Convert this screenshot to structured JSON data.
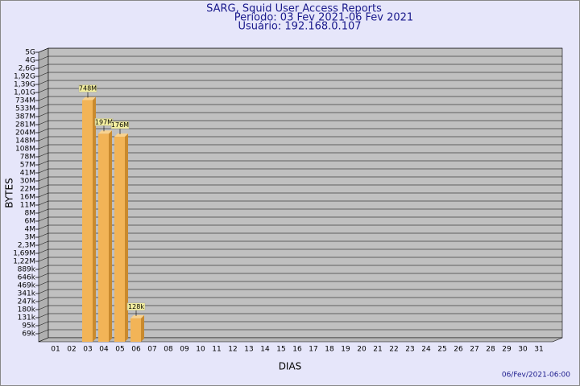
{
  "chart_data": {
    "type": "bar",
    "title": "SARG, Squid User Access Reports",
    "subtitle": "Período: 03 Fev 2021-06 Fev 2021",
    "user": "Usuário: 192.168.0.107",
    "x_label": "DIAS",
    "y_label": "BYTES",
    "footer": "06/Fev/2021-06:00",
    "categories": [
      "01",
      "02",
      "03",
      "04",
      "05",
      "06",
      "07",
      "08",
      "09",
      "10",
      "11",
      "12",
      "13",
      "14",
      "15",
      "16",
      "17",
      "18",
      "19",
      "20",
      "21",
      "22",
      "23",
      "24",
      "25",
      "26",
      "27",
      "28",
      "29",
      "30",
      "31"
    ],
    "values": [
      null,
      null,
      748000000,
      197000000,
      176000000,
      128000,
      null,
      null,
      null,
      null,
      null,
      null,
      null,
      null,
      null,
      null,
      null,
      null,
      null,
      null,
      null,
      null,
      null,
      null,
      null,
      null,
      null,
      null,
      null,
      null,
      null
    ],
    "value_labels": [
      null,
      null,
      "748M",
      "197M",
      "176M",
      "128k",
      null,
      null,
      null,
      null,
      null,
      null,
      null,
      null,
      null,
      null,
      null,
      null,
      null,
      null,
      null,
      null,
      null,
      null,
      null,
      null,
      null,
      null,
      null,
      null,
      null
    ],
    "color": "#f2b457",
    "ylim": [
      0,
      5000000000
    ],
    "yticks": [
      {
        "value": 69000,
        "label": "69k"
      },
      {
        "value": 95000,
        "label": "95k"
      },
      {
        "value": 131000,
        "label": "131k"
      },
      {
        "value": 180000,
        "label": "180k"
      },
      {
        "value": 247000,
        "label": "247k"
      },
      {
        "value": 341000,
        "label": "341k"
      },
      {
        "value": 469000,
        "label": "469k"
      },
      {
        "value": 646000,
        "label": "646k"
      },
      {
        "value": 889000,
        "label": "889k"
      },
      {
        "value": 1220000,
        "label": "1,22M"
      },
      {
        "value": 1690000,
        "label": "1,69M"
      },
      {
        "value": 2300000,
        "label": "2,3M"
      },
      {
        "value": 3000000,
        "label": "3M"
      },
      {
        "value": 4000000,
        "label": "4M"
      },
      {
        "value": 6000000,
        "label": "6M"
      },
      {
        "value": 8000000,
        "label": "8M"
      },
      {
        "value": 11000000,
        "label": "11M"
      },
      {
        "value": 16000000,
        "label": "16M"
      },
      {
        "value": 22000000,
        "label": "22M"
      },
      {
        "value": 30000000,
        "label": "30M"
      },
      {
        "value": 41000000,
        "label": "41M"
      },
      {
        "value": 57000000,
        "label": "57M"
      },
      {
        "value": 78000000,
        "label": "78M"
      },
      {
        "value": 108000000,
        "label": "108M"
      },
      {
        "value": 148000000,
        "label": "148M"
      },
      {
        "value": 204000000,
        "label": "204M"
      },
      {
        "value": 281000000,
        "label": "281M"
      },
      {
        "value": 387000000,
        "label": "387M"
      },
      {
        "value": 533000000,
        "label": "533M"
      },
      {
        "value": 734000000,
        "label": "734M"
      },
      {
        "value": 1010000000,
        "label": "1,01G"
      },
      {
        "value": 1390000000,
        "label": "1,39G"
      },
      {
        "value": 1920000000,
        "label": "1,92G"
      },
      {
        "value": 2600000000,
        "label": "2,6G"
      },
      {
        "value": 4000000000,
        "label": "4G"
      },
      {
        "value": 5000000000,
        "label": "5G"
      }
    ],
    "grid": true
  }
}
